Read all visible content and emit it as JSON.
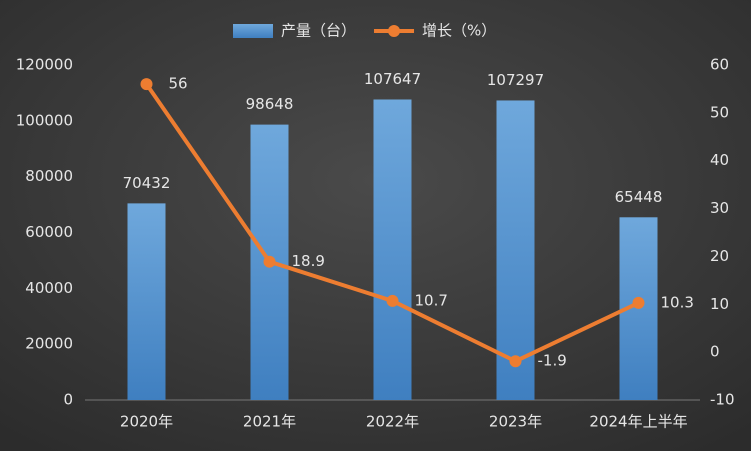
{
  "chart_data": {
    "type": "bar_line",
    "categories": [
      "2020年",
      "2021年",
      "2022年",
      "2023年",
      "2024年上半年"
    ],
    "series": [
      {
        "name": "产量（台）",
        "type": "bar",
        "color": "#5b9bd5",
        "values": [
          70432,
          98648,
          107647,
          107297,
          65448
        ]
      },
      {
        "name": "增长（%）",
        "type": "line",
        "axis": "y2",
        "color": "#ed7d31",
        "values": [
          56,
          18.9,
          10.7,
          -1.9,
          10.3
        ]
      }
    ],
    "ylim": [
      0,
      120000
    ],
    "yticks": [
      0,
      20000,
      40000,
      60000,
      80000,
      100000,
      120000
    ],
    "y2lim": [
      -10,
      60
    ],
    "y2ticks": [
      -10,
      0,
      10,
      20,
      30,
      40,
      50,
      60
    ],
    "legend": "top"
  }
}
